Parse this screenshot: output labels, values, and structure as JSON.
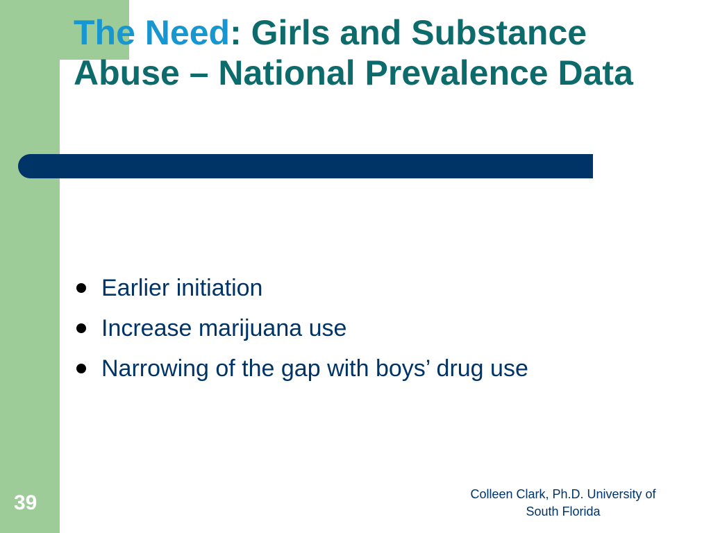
{
  "slide": {
    "title_accent": "The Need",
    "title_rest": ": Girls and Substance Abuse – National Prevalence Data",
    "bullets": [
      "Earlier initiation",
      "Increase marijuana use",
      "Narrowing of the gap with boys’ drug use"
    ],
    "slide_number": "39",
    "footer_line1": "Colleen Clark, Ph.D. University of",
    "footer_line2": "South Florida"
  },
  "colors": {
    "band_green": "#9dcc98",
    "title_teal": "#0e6b6b",
    "title_accent_blue": "#1796cf",
    "divider_navy": "#003366",
    "body_text_navy": "#003366"
  }
}
